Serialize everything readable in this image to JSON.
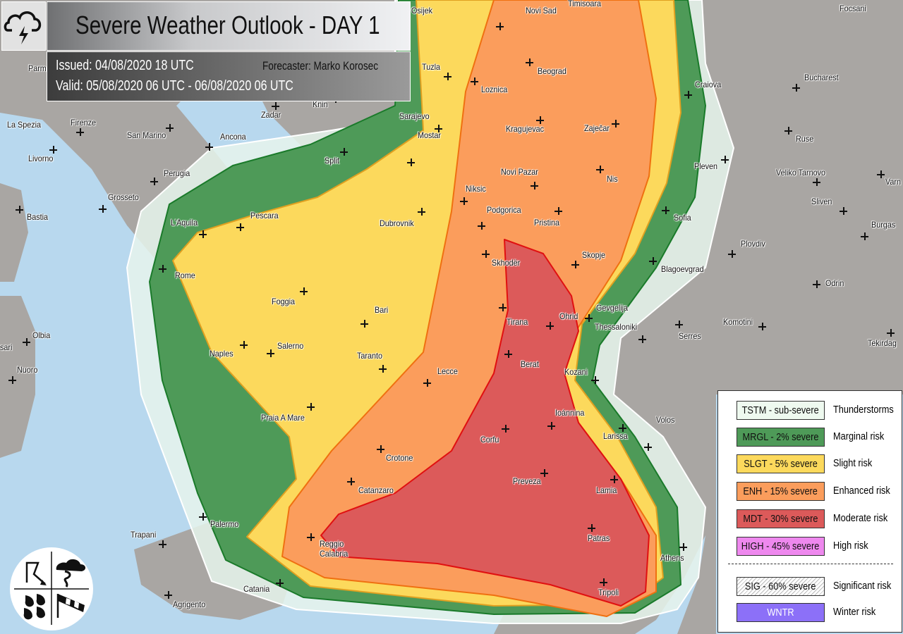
{
  "header": {
    "title": "Severe Weather Outlook - DAY 1",
    "issued": "Issued: 04/08/2020 18 UTC",
    "forecaster": "Forecaster: Marko Korosec",
    "valid": "Valid: 05/08/2020 06 UTC - 06/08/2020 06 UTC",
    "logo_icon": "thunderstorm-cloud-icon"
  },
  "legend": {
    "items": [
      {
        "code": "TSTM - sub-severe",
        "desc": "Thunderstorms",
        "color": "#eef9ef",
        "text_color": "#111111"
      },
      {
        "code": "MRGL - 2% severe",
        "desc": "Marginal risk",
        "color": "#4e9a58",
        "text_color": "#111111"
      },
      {
        "code": "SLGT - 5% severe",
        "desc": "Slight risk",
        "color": "#fcd95c",
        "text_color": "#111111"
      },
      {
        "code": "ENH - 15% severe",
        "desc": "Enhanced risk",
        "color": "#fb9d5c",
        "text_color": "#111111"
      },
      {
        "code": "MDT - 30% severe",
        "desc": "Moderate risk",
        "color": "#dc5a5a",
        "text_color": "#111111"
      },
      {
        "code": "HIGH - 45% severe",
        "desc": "High risk",
        "color": "#ee88ee",
        "text_color": "#111111"
      },
      {
        "code": "SIG - 60% severe",
        "desc": "Significant risk",
        "color": "hatched",
        "text_color": "#111111"
      },
      {
        "code": "WNTR",
        "desc": "Winter risk",
        "color": "#8c70f8",
        "text_color": "#ffffff"
      }
    ]
  },
  "hazard_icons": [
    "lightning-icon",
    "tornado-icon",
    "rain-drops-icon",
    "windsock-icon"
  ],
  "risk_areas": [
    {
      "level": "TSTM",
      "color": "#e6f4ec"
    },
    {
      "level": "MRGL",
      "color": "#4e9a58"
    },
    {
      "level": "SLGT",
      "color": "#fcd95c"
    },
    {
      "level": "ENH",
      "color": "#fb9d5c"
    },
    {
      "level": "MDT",
      "color": "#dc5a5a"
    }
  ],
  "cities": [
    "Osijek",
    "Timisoara",
    "Focsani",
    "Novi Sad",
    "Parma",
    "Tuzla",
    "Beograd",
    "Bucharest",
    "Craiova",
    "Loznica",
    "Knin",
    "Zadar",
    "Sarajevo",
    "La Spezia",
    "Firenze",
    "San Marino",
    "Kragujevac",
    "Zaječar",
    "Ruse",
    "Ancona",
    "Mostar",
    "Livorno",
    "Split",
    "Perugia",
    "Pleven",
    "Novi Pazar",
    "Nis",
    "Veliko Tarnovo",
    "Varn",
    "Grosseto",
    "Niksic",
    "Bastia",
    "Pescara",
    "Dubrovnik",
    "Podgorica",
    "Pristina",
    "Sliven",
    "Burgas",
    "Sofia",
    "L'Aquila",
    "Plovdiv",
    "Skhodër",
    "Skopje",
    "Blagoevgrad",
    "Rome",
    "Odrin",
    "Foggia",
    "Bari",
    "Ohrid",
    "Tirana",
    "Gevgelija",
    "Komotini",
    "Serres",
    "Tekirdag",
    "Olbia",
    "sari",
    "Thessaloniki",
    "Naples",
    "Salerno",
    "Taranto",
    "Berat",
    "Lecce",
    "Kozani",
    "Nuoro",
    "Praia A Mare",
    "Ioánnina",
    "Corfu",
    "Larissa",
    "Volos",
    "Crotone",
    "Preveza",
    "Lamia",
    "Catanzaro",
    "Trapani",
    "Palermo",
    "Reggio\nCalabria",
    "Patras",
    "Athens",
    "Catania",
    "Tripoli",
    "Agrigento"
  ]
}
